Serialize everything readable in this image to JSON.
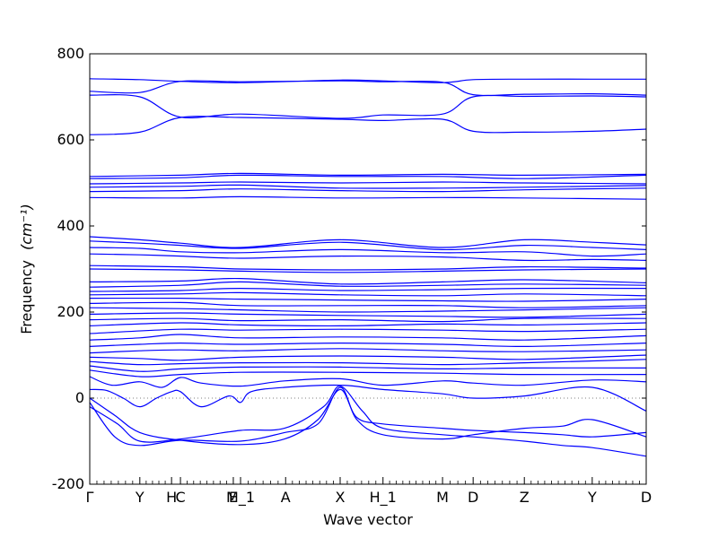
{
  "chart_data": {
    "type": "line",
    "title": "",
    "xlabel": "Wave vector",
    "ylabel": "Frequency",
    "ylabel_unit": "(cm⁻¹)",
    "ylim": [
      -200,
      800
    ],
    "yticks": [
      -200,
      0,
      200,
      400,
      600,
      800
    ],
    "xlim": [
      0,
      1
    ],
    "x_ticks": [
      {
        "label": "Γ",
        "x": 0.0
      },
      {
        "label": "Y",
        "x": 0.09
      },
      {
        "label": "H",
        "x": 0.147
      },
      {
        "label": "C",
        "x": 0.163
      },
      {
        "label": "E",
        "x": 0.258
      },
      {
        "label": "M_1",
        "x": 0.271
      },
      {
        "label": "A",
        "x": 0.352
      },
      {
        "label": "X",
        "x": 0.45
      },
      {
        "label": "H_1",
        "x": 0.527
      },
      {
        "label": "M",
        "x": 0.634
      },
      {
        "label": "D",
        "x": 0.689
      },
      {
        "label": "Z",
        "x": 0.781
      },
      {
        "label": "Y",
        "x": 0.903
      },
      {
        "label": "D",
        "x": 1.0
      }
    ],
    "zero_line": true,
    "line_color": "#0000ff",
    "series": [
      {
        "x": [
          0,
          0.09,
          0.163,
          0.271,
          0.45,
          0.527,
          0.634,
          0.689,
          0.781,
          0.903,
          1.0
        ],
        "y": [
          742,
          740,
          736,
          733,
          739,
          737,
          733,
          740,
          741,
          741,
          741
        ]
      },
      {
        "x": [
          0,
          0.09,
          0.163,
          0.271,
          0.45,
          0.527,
          0.634,
          0.689,
          0.781,
          0.903,
          1.0
        ],
        "y": [
          713,
          710,
          736,
          735,
          737,
          735,
          734,
          705,
          706,
          707,
          704
        ]
      },
      {
        "x": [
          0,
          0.09,
          0.163,
          0.271,
          0.45,
          0.527,
          0.634,
          0.689,
          0.781,
          0.903,
          1.0
        ],
        "y": [
          704,
          700,
          653,
          660,
          650,
          658,
          660,
          700,
          701,
          702,
          700
        ]
      },
      {
        "x": [
          0,
          0.09,
          0.163,
          0.271,
          0.45,
          0.527,
          0.634,
          0.689,
          0.781,
          0.903,
          1.0
        ],
        "y": [
          612,
          618,
          652,
          652,
          648,
          645,
          648,
          620,
          618,
          620,
          625
        ]
      },
      {
        "x": [
          0,
          0.163,
          0.271,
          0.45,
          0.634,
          0.781,
          1.0
        ],
        "y": [
          515,
          518,
          522,
          518,
          520,
          518,
          520
        ]
      },
      {
        "x": [
          0,
          0.163,
          0.271,
          0.45,
          0.634,
          0.781,
          1.0
        ],
        "y": [
          510,
          512,
          518,
          515,
          515,
          510,
          518
        ]
      },
      {
        "x": [
          0,
          0.163,
          0.271,
          0.45,
          0.634,
          0.781,
          1.0
        ],
        "y": [
          498,
          500,
          502,
          500,
          502,
          500,
          498
        ]
      },
      {
        "x": [
          0,
          0.163,
          0.271,
          0.45,
          0.634,
          0.781,
          1.0
        ],
        "y": [
          490,
          492,
          495,
          488,
          488,
          490,
          494
        ]
      },
      {
        "x": [
          0,
          0.163,
          0.271,
          0.45,
          0.634,
          0.781,
          1.0
        ],
        "y": [
          480,
          482,
          486,
          482,
          480,
          484,
          488
        ]
      },
      {
        "x": [
          0,
          0.163,
          0.271,
          0.45,
          0.634,
          0.781,
          1.0
        ],
        "y": [
          466,
          465,
          468,
          465,
          466,
          465,
          462
        ]
      },
      {
        "x": [
          0,
          0.09,
          0.163,
          0.271,
          0.45,
          0.634,
          0.781,
          0.903,
          1.0
        ],
        "y": [
          375,
          368,
          360,
          350,
          368,
          350,
          368,
          362,
          356
        ]
      },
      {
        "x": [
          0,
          0.09,
          0.163,
          0.271,
          0.45,
          0.634,
          0.781,
          0.903,
          1.0
        ],
        "y": [
          365,
          360,
          355,
          348,
          362,
          345,
          355,
          350,
          345
        ]
      },
      {
        "x": [
          0,
          0.09,
          0.163,
          0.271,
          0.45,
          0.634,
          0.781,
          0.903,
          1.0
        ],
        "y": [
          350,
          348,
          340,
          338,
          345,
          338,
          340,
          330,
          335
        ]
      },
      {
        "x": [
          0,
          0.09,
          0.163,
          0.271,
          0.45,
          0.634,
          0.781,
          0.903,
          1.0
        ],
        "y": [
          335,
          333,
          330,
          325,
          330,
          328,
          320,
          322,
          320
        ]
      },
      {
        "x": [
          0,
          0.163,
          0.271,
          0.45,
          0.634,
          0.781,
          1.0
        ],
        "y": [
          308,
          305,
          300,
          298,
          300,
          305,
          302
        ]
      },
      {
        "x": [
          0,
          0.163,
          0.271,
          0.45,
          0.634,
          0.781,
          1.0
        ],
        "y": [
          300,
          298,
          295,
          292,
          295,
          298,
          300
        ]
      },
      {
        "x": [
          0,
          0.163,
          0.271,
          0.45,
          0.634,
          0.781,
          1.0
        ],
        "y": [
          270,
          272,
          278,
          265,
          270,
          275,
          268
        ]
      },
      {
        "x": [
          0,
          0.163,
          0.271,
          0.45,
          0.634,
          0.781,
          1.0
        ],
        "y": [
          258,
          262,
          270,
          260,
          262,
          265,
          262
        ]
      },
      {
        "x": [
          0,
          0.163,
          0.271,
          0.45,
          0.634,
          0.781,
          1.0
        ],
        "y": [
          248,
          250,
          255,
          250,
          252,
          255,
          255
        ]
      },
      {
        "x": [
          0,
          0.163,
          0.271,
          0.45,
          0.634,
          0.781,
          1.0
        ],
        "y": [
          240,
          242,
          245,
          240,
          238,
          242,
          238
        ]
      },
      {
        "x": [
          0,
          0.163,
          0.271,
          0.45,
          0.634,
          0.781,
          1.0
        ],
        "y": [
          232,
          232,
          230,
          228,
          226,
          225,
          230
        ]
      },
      {
        "x": [
          0,
          0.163,
          0.271,
          0.45,
          0.634,
          0.781,
          1.0
        ],
        "y": [
          220,
          222,
          215,
          215,
          215,
          210,
          215
        ]
      },
      {
        "x": [
          0,
          0.163,
          0.271,
          0.45,
          0.634,
          0.781,
          1.0
        ],
        "y": [
          210,
          208,
          205,
          200,
          202,
          205,
          210
        ]
      },
      {
        "x": [
          0,
          0.163,
          0.271,
          0.45,
          0.634,
          0.781,
          1.0
        ],
        "y": [
          195,
          198,
          195,
          192,
          190,
          188,
          195
        ]
      },
      {
        "x": [
          0,
          0.163,
          0.271,
          0.45,
          0.634,
          0.781,
          1.0
        ],
        "y": [
          182,
          185,
          180,
          182,
          178,
          185,
          185
        ]
      },
      {
        "x": [
          0,
          0.163,
          0.271,
          0.45,
          0.634,
          0.781,
          1.0
        ],
        "y": [
          168,
          175,
          170,
          168,
          172,
          170,
          175
        ]
      },
      {
        "x": [
          0,
          0.163,
          0.271,
          0.45,
          0.634,
          0.781,
          1.0
        ],
        "y": [
          150,
          160,
          158,
          160,
          158,
          155,
          160
        ]
      },
      {
        "x": [
          0,
          0.09,
          0.163,
          0.271,
          0.45,
          0.634,
          0.781,
          1.0
        ],
        "y": [
          135,
          140,
          148,
          140,
          142,
          140,
          135,
          145
        ]
      },
      {
        "x": [
          0,
          0.09,
          0.163,
          0.271,
          0.45,
          0.634,
          0.781,
          1.0
        ],
        "y": [
          120,
          125,
          128,
          125,
          128,
          125,
          120,
          128
        ]
      },
      {
        "x": [
          0,
          0.09,
          0.163,
          0.271,
          0.45,
          0.634,
          0.781,
          1.0
        ],
        "y": [
          105,
          110,
          112,
          110,
          115,
          110,
          108,
          112
        ]
      },
      {
        "x": [
          0,
          0.09,
          0.163,
          0.271,
          0.45,
          0.634,
          0.781,
          1.0
        ],
        "y": [
          95,
          92,
          88,
          95,
          98,
          95,
          90,
          100
        ]
      },
      {
        "x": [
          0,
          0.09,
          0.163,
          0.271,
          0.45,
          0.634,
          0.781,
          1.0
        ],
        "y": [
          85,
          78,
          80,
          82,
          82,
          78,
          82,
          90
        ]
      },
      {
        "x": [
          0,
          0.09,
          0.163,
          0.271,
          0.45,
          0.634,
          0.781,
          1.0
        ],
        "y": [
          75,
          62,
          68,
          72,
          72,
          68,
          70,
          70
        ]
      },
      {
        "x": [
          0,
          0.09,
          0.163,
          0.271,
          0.45,
          0.634,
          0.781,
          1.0
        ],
        "y": [
          65,
          50,
          55,
          60,
          60,
          58,
          55,
          55
        ]
      },
      {
        "x": [
          0,
          0.04,
          0.09,
          0.13,
          0.163,
          0.2,
          0.271,
          0.35,
          0.45,
          0.527,
          0.634,
          0.689,
          0.781,
          0.903,
          1.0
        ],
        "y": [
          50,
          30,
          38,
          25,
          48,
          35,
          28,
          40,
          45,
          30,
          40,
          35,
          30,
          42,
          38
        ]
      },
      {
        "x": [
          0,
          0.03,
          0.06,
          0.09,
          0.12,
          0.147,
          0.163,
          0.2,
          0.25,
          0.271,
          0.29,
          0.35,
          0.45,
          0.527,
          0.634,
          0.689,
          0.781,
          0.903,
          1.0
        ],
        "y": [
          20,
          18,
          0,
          -20,
          0,
          15,
          15,
          -20,
          5,
          -10,
          15,
          25,
          30,
          20,
          10,
          0,
          5,
          25,
          -30
        ]
      },
      {
        "x": [
          0,
          0.045,
          0.09,
          0.163,
          0.271,
          0.35,
          0.41,
          0.45,
          0.48,
          0.527,
          0.634,
          0.689,
          0.781,
          0.85,
          0.903,
          1.0
        ],
        "y": [
          0,
          -40,
          -80,
          -98,
          -108,
          -95,
          -50,
          20,
          -45,
          -60,
          -70,
          -75,
          -80,
          -85,
          -90,
          -80
        ]
      },
      {
        "x": [
          0,
          0.045,
          0.09,
          0.163,
          0.271,
          0.35,
          0.41,
          0.45,
          0.48,
          0.527,
          0.634,
          0.689,
          0.781,
          0.85,
          0.903,
          1.0
        ],
        "y": [
          -10,
          -90,
          -110,
          -98,
          -100,
          -80,
          -60,
          25,
          -50,
          -85,
          -95,
          -85,
          -70,
          -65,
          -50,
          -90
        ]
      },
      {
        "x": [
          0,
          0.05,
          0.09,
          0.163,
          0.271,
          0.35,
          0.42,
          0.45,
          0.49,
          0.527,
          0.634,
          0.689,
          0.781,
          0.85,
          0.903,
          1.0
        ],
        "y": [
          -20,
          -60,
          -100,
          -95,
          -75,
          -70,
          -20,
          28,
          -30,
          -70,
          -85,
          -90,
          -100,
          -110,
          -115,
          -135
        ]
      }
    ]
  }
}
